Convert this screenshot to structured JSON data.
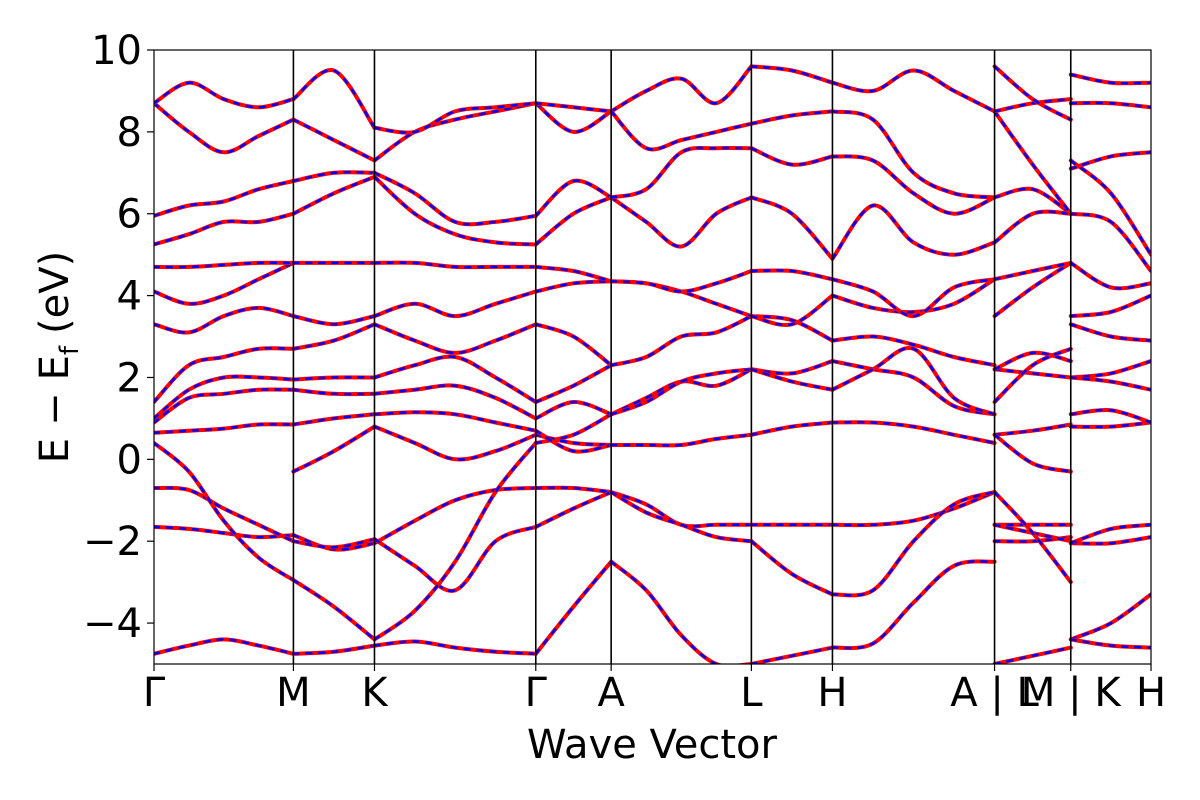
{
  "chart_data": {
    "type": "line",
    "title": "",
    "xlabel": "Wave Vector",
    "ylabel_main": "E",
    "ylabel_minus": "−",
    "ylabel_sym": "E",
    "ylabel_sub": "f",
    "ylabel_unit": "(eV)",
    "ylim": [
      -5,
      10
    ],
    "yticks": [
      -4,
      -2,
      0,
      2,
      4,
      6,
      8,
      10
    ],
    "ytick_labels": [
      "−4",
      "−2",
      "0",
      "2",
      "4",
      "6",
      "8",
      "10"
    ],
    "xlim": [
      0,
      12.3
    ],
    "kpoints": [
      {
        "label": "Γ",
        "x": 0.0
      },
      {
        "label": "M",
        "x": 1.72
      },
      {
        "label": "K",
        "x": 2.72
      },
      {
        "label": "Γ",
        "x": 4.71
      },
      {
        "label": "A",
        "x": 5.64
      },
      {
        "label": "L",
        "x": 7.37
      },
      {
        "label": "H",
        "x": 8.37
      },
      {
        "label": "A | L",
        "x": 10.37
      },
      {
        "label": "M | K",
        "x": 11.31
      },
      {
        "label": "H",
        "x": 12.3
      }
    ],
    "grid": false,
    "legend": "none",
    "colors": {
      "series_a": "#ff0000",
      "series_b": "#0000ff"
    },
    "segments": [
      {
        "range": [
          0.0,
          1.72
        ],
        "bands": [
          [
            -4.75,
            -4.55,
            -4.4,
            -4.55,
            -4.75
          ],
          [
            -1.65,
            -1.7,
            -1.8,
            -1.9,
            -1.85
          ],
          [
            -0.7,
            -0.75,
            -1.2,
            -1.6,
            -2.0
          ],
          [
            0.4,
            -0.3,
            -1.5,
            -2.4,
            -2.95
          ],
          [
            0.65,
            0.7,
            0.75,
            0.85,
            0.85
          ],
          [
            0.9,
            1.5,
            1.6,
            1.7,
            1.7
          ],
          [
            1.0,
            1.7,
            2.0,
            2.0,
            1.95
          ],
          [
            1.4,
            2.3,
            2.5,
            2.7,
            2.7
          ],
          [
            3.3,
            3.1,
            3.5,
            3.7,
            3.5
          ],
          [
            4.1,
            3.8,
            4.0,
            4.4,
            4.8
          ],
          [
            4.7,
            4.7,
            4.75,
            4.8,
            4.8
          ],
          [
            5.25,
            5.5,
            5.8,
            5.8,
            6.0
          ],
          [
            5.95,
            6.2,
            6.3,
            6.6,
            6.8
          ],
          [
            8.7,
            8.0,
            7.5,
            7.9,
            8.3
          ],
          [
            8.7,
            9.2,
            8.8,
            8.6,
            8.8
          ]
        ]
      },
      {
        "range": [
          1.72,
          2.72
        ],
        "bands": [
          [
            -4.75,
            -4.7,
            -4.55
          ],
          [
            -1.85,
            -2.2,
            -2.05
          ],
          [
            -2.0,
            -2.15,
            -1.95
          ],
          [
            -2.95,
            -3.6,
            -4.4
          ],
          [
            -0.3,
            0.2,
            0.8
          ],
          [
            0.85,
            1.0,
            1.1
          ],
          [
            1.7,
            1.6,
            1.6
          ],
          [
            1.95,
            2.0,
            2.0
          ],
          [
            2.7,
            2.9,
            3.3
          ],
          [
            3.5,
            3.3,
            3.5
          ],
          [
            4.8,
            4.8,
            4.8
          ],
          [
            6.0,
            6.5,
            6.9
          ],
          [
            6.8,
            7.0,
            7.0
          ],
          [
            8.3,
            7.8,
            7.3
          ],
          [
            8.8,
            9.5,
            8.1
          ]
        ]
      },
      {
        "range": [
          2.72,
          4.71
        ],
        "bands": [
          [
            -4.55,
            -4.45,
            -4.6,
            -4.7,
            -4.75
          ],
          [
            -2.05,
            -1.5,
            -1.0,
            -0.75,
            -0.7
          ],
          [
            -1.95,
            -2.6,
            -3.2,
            -2.0,
            -1.65
          ],
          [
            -4.4,
            -3.7,
            -2.5,
            -0.8,
            0.4
          ],
          [
            0.8,
            0.4,
            0.0,
            0.2,
            0.6
          ],
          [
            1.1,
            1.15,
            1.1,
            0.9,
            0.7
          ],
          [
            1.6,
            1.7,
            1.8,
            1.5,
            1.0
          ],
          [
            2.0,
            2.3,
            2.5,
            2.0,
            1.4
          ],
          [
            3.3,
            2.9,
            2.6,
            2.9,
            3.3
          ],
          [
            3.5,
            3.8,
            3.5,
            3.8,
            4.1
          ],
          [
            4.8,
            4.8,
            4.7,
            4.7,
            4.7
          ],
          [
            6.9,
            6.0,
            5.5,
            5.3,
            5.25
          ],
          [
            7.0,
            6.5,
            5.8,
            5.8,
            5.95
          ],
          [
            7.3,
            8.0,
            8.3,
            8.5,
            8.7
          ],
          [
            8.1,
            8.0,
            8.5,
            8.6,
            8.7
          ]
        ]
      },
      {
        "range": [
          4.71,
          5.64
        ],
        "bands": [
          [
            -4.75,
            -3.6,
            -2.5
          ],
          [
            -0.7,
            -0.7,
            -0.8
          ],
          [
            -1.65,
            -1.2,
            -0.8
          ],
          [
            0.4,
            0.6,
            1.1
          ],
          [
            0.6,
            0.4,
            0.35
          ],
          [
            0.7,
            0.2,
            0.35
          ],
          [
            1.0,
            1.4,
            1.1
          ],
          [
            1.4,
            1.8,
            2.3
          ],
          [
            3.3,
            3.0,
            2.3
          ],
          [
            4.1,
            4.3,
            4.35
          ],
          [
            4.7,
            4.6,
            4.35
          ],
          [
            5.25,
            6.0,
            6.4
          ],
          [
            5.95,
            6.8,
            6.4
          ],
          [
            8.7,
            8.0,
            8.5
          ],
          [
            8.7,
            8.6,
            8.5
          ]
        ]
      },
      {
        "range": [
          5.64,
          7.37
        ],
        "bands": [
          [
            -2.5,
            -3.2,
            -4.3,
            -5.0,
            -5.0
          ],
          [
            -0.8,
            -1.1,
            -1.6,
            -1.6,
            -1.6
          ],
          [
            -0.8,
            -1.3,
            -1.6,
            -1.9,
            -2.0
          ],
          [
            0.35,
            0.35,
            0.35,
            0.5,
            0.6
          ],
          [
            1.1,
            1.5,
            1.9,
            1.8,
            2.2
          ],
          [
            1.1,
            1.4,
            1.9,
            2.1,
            2.2
          ],
          [
            2.3,
            2.5,
            3.0,
            3.1,
            3.5
          ],
          [
            4.35,
            4.3,
            4.1,
            3.8,
            3.5
          ],
          [
            4.35,
            4.3,
            4.1,
            4.3,
            4.6
          ],
          [
            6.4,
            5.8,
            5.2,
            6.0,
            6.4
          ],
          [
            6.4,
            6.6,
            7.5,
            7.6,
            7.6
          ],
          [
            8.5,
            9.0,
            9.3,
            8.7,
            9.6
          ],
          [
            8.5,
            7.6,
            7.8,
            8.0,
            8.2
          ]
        ]
      },
      {
        "range": [
          7.37,
          8.37
        ],
        "bands": [
          [
            -5.0,
            -4.8,
            -4.6
          ],
          [
            -1.6,
            -1.6,
            -1.6
          ],
          [
            -2.0,
            -2.8,
            -3.3
          ],
          [
            0.6,
            0.8,
            0.9
          ],
          [
            2.2,
            2.1,
            2.4
          ],
          [
            2.2,
            1.9,
            1.7
          ],
          [
            3.5,
            3.4,
            2.9
          ],
          [
            3.5,
            3.3,
            4.0
          ],
          [
            4.6,
            4.6,
            4.4
          ],
          [
            6.4,
            6.0,
            4.9
          ],
          [
            7.6,
            7.2,
            7.4
          ],
          [
            9.6,
            9.5,
            9.2
          ],
          [
            8.2,
            8.4,
            8.5
          ]
        ]
      },
      {
        "range": [
          8.37,
          10.37
        ],
        "bands": [
          [
            -4.6,
            -4.5,
            -3.5,
            -2.6,
            -2.5
          ],
          [
            -1.6,
            -1.6,
            -1.5,
            -1.2,
            -0.8
          ],
          [
            -3.3,
            -3.2,
            -2.0,
            -1.1,
            -0.8
          ],
          [
            0.9,
            0.9,
            0.8,
            0.6,
            0.4
          ],
          [
            2.4,
            2.2,
            2.0,
            1.3,
            1.1
          ],
          [
            1.7,
            2.2,
            2.7,
            1.5,
            1.1
          ],
          [
            2.9,
            3.0,
            2.8,
            2.5,
            2.3
          ],
          [
            4.0,
            3.7,
            3.6,
            3.8,
            4.4
          ],
          [
            4.4,
            4.1,
            3.5,
            4.2,
            4.4
          ],
          [
            4.9,
            6.2,
            5.3,
            5.0,
            5.3
          ],
          [
            7.4,
            7.3,
            6.5,
            6.0,
            6.4
          ],
          [
            9.2,
            9.0,
            9.5,
            9.0,
            8.5
          ],
          [
            8.5,
            8.3,
            7.0,
            6.5,
            6.4
          ]
        ]
      },
      {
        "range": [
          10.37,
          11.31
        ],
        "bands": [
          [
            -5.0,
            -4.8,
            -4.6
          ],
          [
            -1.6,
            -1.6,
            -1.6
          ],
          [
            -2.0,
            -2.0,
            -1.9
          ],
          [
            -1.6,
            -1.8,
            -2.0
          ],
          [
            0.6,
            0.7,
            0.85
          ],
          [
            0.6,
            -0.1,
            -0.3
          ],
          [
            -0.8,
            -1.8,
            -3.0
          ],
          [
            2.2,
            2.1,
            2.0
          ],
          [
            2.2,
            2.6,
            2.4
          ],
          [
            1.4,
            2.3,
            2.7
          ],
          [
            3.5,
            4.2,
            4.8
          ],
          [
            4.4,
            4.6,
            4.8
          ],
          [
            5.3,
            6.0,
            6.0
          ],
          [
            6.4,
            6.6,
            6.0
          ],
          [
            8.5,
            7.2,
            6.0
          ],
          [
            8.5,
            8.7,
            8.8
          ],
          [
            9.6,
            8.8,
            8.3
          ]
        ]
      },
      {
        "range": [
          11.31,
          12.3
        ],
        "bands": [
          [
            -4.4,
            -4.0,
            -3.3
          ],
          [
            -4.4,
            -4.55,
            -4.6
          ],
          [
            -2.05,
            -2.05,
            -1.9
          ],
          [
            -2.05,
            -1.7,
            -1.6
          ],
          [
            0.8,
            0.8,
            0.9
          ],
          [
            1.1,
            1.2,
            0.9
          ],
          [
            2.0,
            2.1,
            2.4
          ],
          [
            2.0,
            1.9,
            1.7
          ],
          [
            3.3,
            3.0,
            2.9
          ],
          [
            3.5,
            3.6,
            4.0
          ],
          [
            4.8,
            4.2,
            4.3
          ],
          [
            6.0,
            5.8,
            4.6
          ],
          [
            7.3,
            6.5,
            5.0
          ],
          [
            7.1,
            7.4,
            7.5
          ],
          [
            8.7,
            8.7,
            8.6
          ],
          [
            9.4,
            9.2,
            9.2
          ]
        ]
      }
    ]
  }
}
